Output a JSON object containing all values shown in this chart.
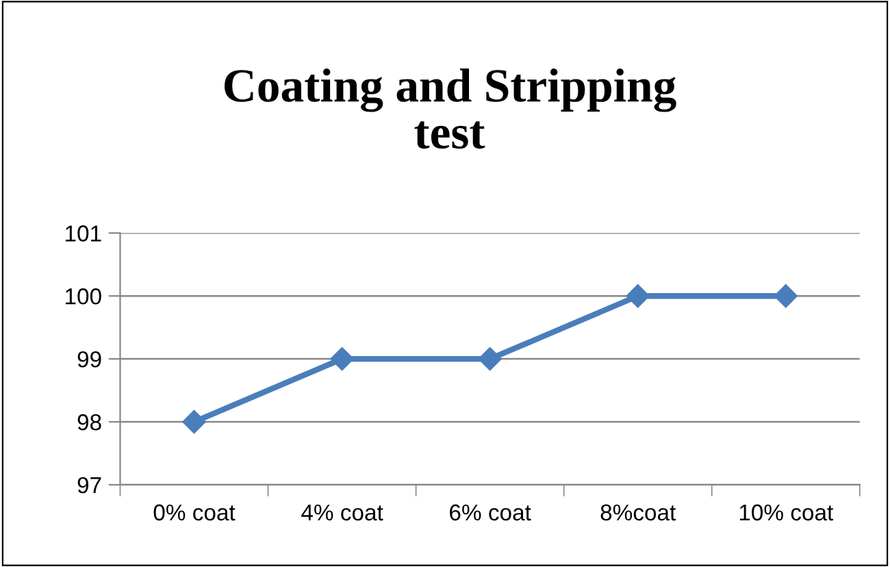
{
  "chart_data": {
    "type": "line",
    "title": "Coating and Stripping\ntest",
    "categories": [
      "0% coat",
      "4% coat",
      "6% coat",
      "8%coat",
      "10% coat"
    ],
    "series": [
      {
        "color": "#4a7ebb",
        "values": [
          98,
          99,
          99,
          100,
          100
        ]
      }
    ],
    "ylim": [
      97,
      101
    ],
    "yticks": [
      97,
      98,
      99,
      100,
      101
    ],
    "grid": "y",
    "marker": "diamond",
    "line_style": "solid"
  }
}
